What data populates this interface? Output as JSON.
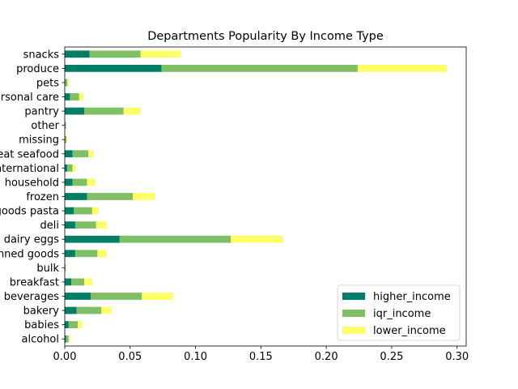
{
  "chart_data": {
    "type": "bar",
    "orientation": "horizontal",
    "stacked": true,
    "title": "Departments Popularity By Income Type",
    "xlabel": "",
    "ylabel": "",
    "xlim": [
      0,
      0.307
    ],
    "xticks": [
      0.0,
      0.05,
      0.1,
      0.15,
      0.2,
      0.25,
      0.3
    ],
    "xtick_labels": [
      "0.00",
      "0.05",
      "0.10",
      "0.15",
      "0.20",
      "0.25",
      "0.30"
    ],
    "grid": false,
    "legend_position": "lower-right",
    "categories": [
      "alcohol",
      "babies",
      "bakery",
      "beverages",
      "breakfast",
      "bulk",
      "canned goods",
      "dairy eggs",
      "deli",
      "dry goods pasta",
      "frozen",
      "household",
      "international",
      "meat seafood",
      "missing",
      "other",
      "pantry",
      "personal care",
      "pets",
      "produce",
      "snacks"
    ],
    "series": [
      {
        "name": "higher_income",
        "color": "#007f66",
        "values": [
          0.001,
          0.003,
          0.009,
          0.02,
          0.005,
          0.0002,
          0.008,
          0.042,
          0.008,
          0.007,
          0.017,
          0.006,
          0.002,
          0.006,
          0.0003,
          0.0003,
          0.015,
          0.004,
          0.0005,
          0.074,
          0.019
        ]
      },
      {
        "name": "iqr_income",
        "color": "#7fbf66",
        "values": [
          0.002,
          0.007,
          0.019,
          0.039,
          0.01,
          0.0006,
          0.017,
          0.085,
          0.016,
          0.014,
          0.035,
          0.011,
          0.004,
          0.012,
          0.001,
          0.0006,
          0.03,
          0.007,
          0.0015,
          0.15,
          0.039
        ]
      },
      {
        "name": "lower_income",
        "color": "#ffff66",
        "values": [
          0.001,
          0.003,
          0.008,
          0.024,
          0.006,
          0.0002,
          0.007,
          0.04,
          0.008,
          0.005,
          0.017,
          0.006,
          0.002,
          0.004,
          0.0004,
          0.0003,
          0.013,
          0.003,
          0.001,
          0.068,
          0.031
        ]
      }
    ]
  }
}
